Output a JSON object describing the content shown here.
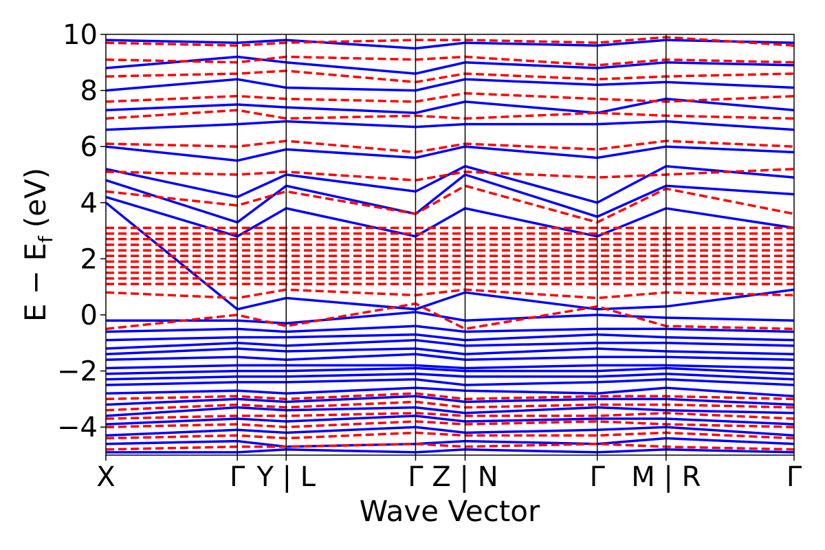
{
  "chart_data": {
    "type": "line",
    "title": "",
    "xlabel": "Wave Vector",
    "ylabel": "E − E_f (eV)",
    "ylabel_main": "E − E",
    "ylabel_sub": "f",
    "ylabel_unit": "(eV)",
    "ylim": [
      -5,
      10
    ],
    "yticks": [
      -4,
      -2,
      0,
      2,
      4,
      6,
      8,
      10
    ],
    "ytick_labels": [
      "−4",
      "−2",
      "0",
      "2",
      "4",
      "6",
      "8",
      "10"
    ],
    "xlim": [
      0,
      1
    ],
    "x_high_symmetry": [
      {
        "pos": 0.0,
        "label": "X"
      },
      {
        "pos": 0.191,
        "label": "Γ"
      },
      {
        "pos": 0.262,
        "label": "Y | L"
      },
      {
        "pos": 0.45,
        "label": "Γ"
      },
      {
        "pos": 0.522,
        "label": "Z | N"
      },
      {
        "pos": 0.714,
        "label": "Γ"
      },
      {
        "pos": 0.814,
        "label": "M | R"
      },
      {
        "pos": 1.0,
        "label": "Γ"
      }
    ],
    "grid": false,
    "legend": "none",
    "colors": {
      "series_a": "#0000ff",
      "series_b": "#ff0000"
    },
    "series": [
      {
        "style": "solid",
        "color": "#0000ff",
        "bands": [
          [
            -4.9,
            -4.9,
            -4.8,
            -4.9,
            -4.8,
            -4.9,
            -4.8,
            -4.9
          ],
          [
            -4.6,
            -4.5,
            -4.7,
            -4.6,
            -4.5,
            -4.6,
            -4.4,
            -4.6
          ],
          [
            -4.3,
            -4.1,
            -4.2,
            -4.0,
            -4.2,
            -4.1,
            -4.0,
            -4.3
          ],
          [
            -3.9,
            -3.7,
            -3.8,
            -3.6,
            -3.8,
            -3.7,
            -3.7,
            -3.9
          ],
          [
            -3.6,
            -3.3,
            -3.4,
            -3.3,
            -3.5,
            -3.3,
            -3.4,
            -3.5
          ],
          [
            -3.2,
            -3.0,
            -3.1,
            -2.9,
            -3.1,
            -3.0,
            -3.0,
            -3.2
          ],
          [
            -2.8,
            -2.7,
            -2.8,
            -2.6,
            -2.7,
            -2.8,
            -2.6,
            -2.9
          ],
          [
            -2.5,
            -2.4,
            -2.4,
            -2.3,
            -2.5,
            -2.4,
            -2.3,
            -2.5
          ],
          [
            -2.3,
            -2.2,
            -2.2,
            -2.1,
            -2.2,
            -2.2,
            -2.1,
            -2.3
          ],
          [
            -2.1,
            -2.0,
            -2.0,
            -1.9,
            -2.0,
            -2.0,
            -1.9,
            -2.1
          ],
          [
            -1.9,
            -1.8,
            -1.8,
            -1.8,
            -1.9,
            -1.8,
            -1.8,
            -1.9
          ],
          [
            -1.6,
            -1.5,
            -1.6,
            -1.4,
            -1.6,
            -1.5,
            -1.5,
            -1.6
          ],
          [
            -1.4,
            -1.2,
            -1.3,
            -1.2,
            -1.4,
            -1.2,
            -1.3,
            -1.4
          ],
          [
            -1.2,
            -1.0,
            -1.1,
            -0.9,
            -1.1,
            -1.0,
            -1.0,
            -1.1
          ],
          [
            -0.9,
            -0.8,
            -0.8,
            -0.7,
            -0.9,
            -0.7,
            -0.8,
            -0.9
          ],
          [
            -0.6,
            -0.5,
            -0.6,
            -0.4,
            -0.6,
            -0.5,
            -0.5,
            -0.6
          ],
          [
            -0.2,
            -0.2,
            -0.3,
            0.1,
            -0.2,
            0.0,
            -0.1,
            -0.2
          ],
          [
            4.0,
            0.2,
            0.6,
            0.2,
            0.8,
            0.2,
            0.3,
            0.9
          ],
          [
            4.2,
            2.8,
            3.8,
            2.8,
            3.8,
            2.8,
            3.8,
            3.1
          ],
          [
            4.8,
            3.3,
            4.6,
            3.6,
            5.0,
            3.5,
            4.6,
            4.3
          ],
          [
            5.2,
            4.2,
            5.0,
            4.4,
            5.3,
            4.0,
            5.3,
            4.9
          ],
          [
            6.0,
            5.5,
            5.9,
            5.6,
            6.0,
            5.6,
            6.0,
            5.8
          ],
          [
            6.6,
            6.8,
            6.9,
            6.7,
            6.8,
            6.8,
            6.9,
            6.6
          ],
          [
            7.3,
            7.5,
            7.4,
            7.2,
            7.6,
            7.2,
            7.7,
            7.3
          ],
          [
            8.0,
            8.4,
            8.1,
            8.0,
            8.4,
            8.2,
            8.3,
            8.1
          ],
          [
            8.8,
            9.2,
            9.0,
            8.6,
            9.0,
            8.8,
            9.0,
            8.9
          ],
          [
            9.8,
            9.7,
            9.8,
            9.5,
            9.7,
            9.6,
            9.8,
            9.7
          ]
        ]
      },
      {
        "style": "dashed",
        "color": "#ff0000",
        "bands": [
          [
            -4.8,
            -4.7,
            -4.7,
            -4.6,
            -4.7,
            -4.6,
            -4.7,
            -4.8
          ],
          [
            -4.4,
            -4.3,
            -4.4,
            -4.2,
            -4.3,
            -4.3,
            -4.2,
            -4.4
          ],
          [
            -4.0,
            -3.9,
            -4.0,
            -3.8,
            -3.9,
            -3.8,
            -3.9,
            -4.0
          ],
          [
            -3.7,
            -3.6,
            -3.6,
            -3.5,
            -3.6,
            -3.6,
            -3.5,
            -3.7
          ],
          [
            -3.4,
            -3.2,
            -3.3,
            -3.1,
            -3.3,
            -3.2,
            -3.2,
            -3.3
          ],
          [
            -3.0,
            -2.9,
            -3.0,
            -2.8,
            -3.0,
            -2.9,
            -2.9,
            -3.0
          ],
          [
            -0.5,
            0.0,
            -0.4,
            0.4,
            -0.5,
            0.3,
            -0.4,
            -0.5
          ],
          [
            0.8,
            0.6,
            0.9,
            0.7,
            0.9,
            0.6,
            0.8,
            0.7
          ],
          [
            1.1,
            1.1,
            1.1,
            1.1,
            1.1,
            1.1,
            1.1,
            1.1
          ],
          [
            1.3,
            1.3,
            1.3,
            1.3,
            1.3,
            1.3,
            1.3,
            1.3
          ],
          [
            1.5,
            1.5,
            1.5,
            1.5,
            1.5,
            1.5,
            1.5,
            1.5
          ],
          [
            1.7,
            1.7,
            1.7,
            1.7,
            1.7,
            1.7,
            1.7,
            1.7
          ],
          [
            1.9,
            1.9,
            1.9,
            1.9,
            1.9,
            1.9,
            1.9,
            1.9
          ],
          [
            2.1,
            2.1,
            2.1,
            2.1,
            2.1,
            2.1,
            2.1,
            2.1
          ],
          [
            2.3,
            2.3,
            2.3,
            2.3,
            2.3,
            2.3,
            2.3,
            2.3
          ],
          [
            2.5,
            2.5,
            2.5,
            2.5,
            2.5,
            2.5,
            2.5,
            2.5
          ],
          [
            2.7,
            2.7,
            2.7,
            2.7,
            2.7,
            2.7,
            2.7,
            2.7
          ],
          [
            2.9,
            2.9,
            2.9,
            2.9,
            2.9,
            2.9,
            2.9,
            2.9
          ],
          [
            3.1,
            3.1,
            3.1,
            3.1,
            3.1,
            3.1,
            3.1,
            3.1
          ],
          [
            4.4,
            3.9,
            4.4,
            3.6,
            4.6,
            3.3,
            4.5,
            3.6
          ],
          [
            5.1,
            5.0,
            5.1,
            4.8,
            5.1,
            4.9,
            5.0,
            5.2
          ],
          [
            6.1,
            6.0,
            6.2,
            5.8,
            6.1,
            5.9,
            6.2,
            6.0
          ],
          [
            7.0,
            7.3,
            7.0,
            7.1,
            7.0,
            7.2,
            7.1,
            7.0
          ],
          [
            7.6,
            7.8,
            7.7,
            7.6,
            7.9,
            7.7,
            7.6,
            7.8
          ],
          [
            8.5,
            8.6,
            8.7,
            8.3,
            8.6,
            8.4,
            8.5,
            8.6
          ],
          [
            9.1,
            9.0,
            9.2,
            9.1,
            9.2,
            8.9,
            9.1,
            9.0
          ],
          [
            9.7,
            9.6,
            9.7,
            9.8,
            9.8,
            9.7,
            9.9,
            9.6
          ]
        ]
      }
    ]
  }
}
